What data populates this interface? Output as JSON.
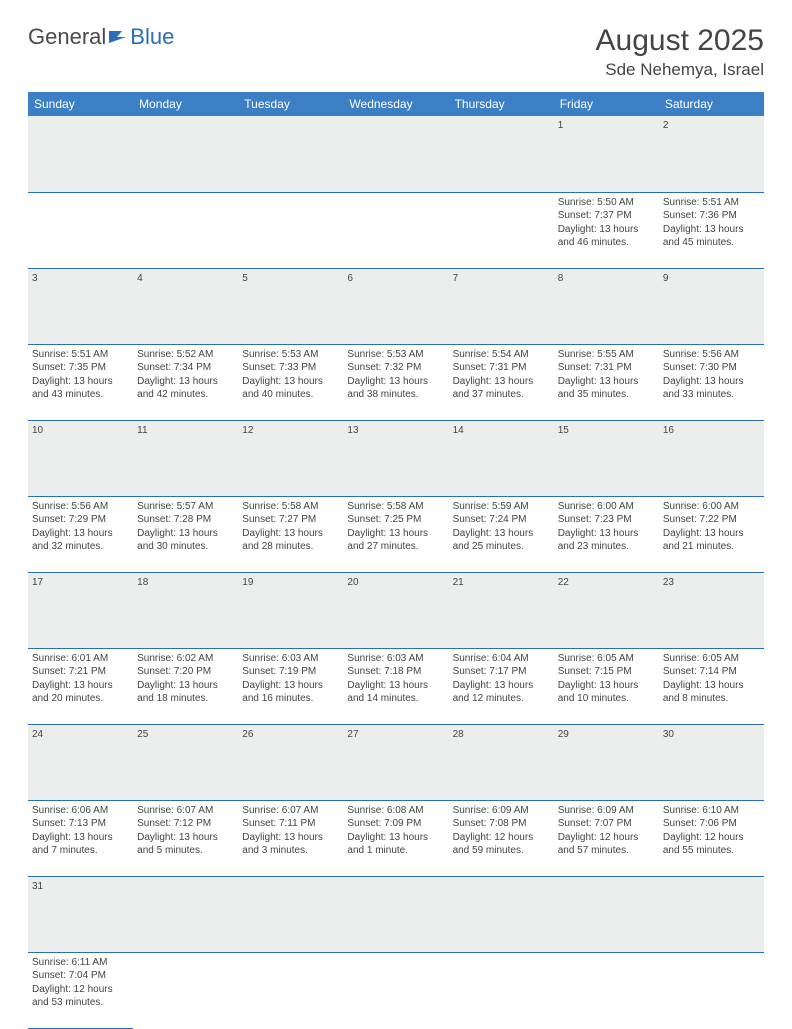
{
  "brand": {
    "word1": "General",
    "word2": "Blue",
    "text_color": "#4a4a4a",
    "accent_color": "#2a6db8"
  },
  "title": {
    "month": "August 2025",
    "location": "Sde Nehemya, Israel"
  },
  "colors": {
    "header_bg": "#3b7fc4",
    "header_fg": "#ffffff",
    "daynum_bg": "#eceded",
    "cell_border": "#2a6db8",
    "text": "#444444"
  },
  "weekdays": [
    "Sunday",
    "Monday",
    "Tuesday",
    "Wednesday",
    "Thursday",
    "Friday",
    "Saturday"
  ],
  "calendar": {
    "first_weekday_index": 5,
    "num_days": 31,
    "days": {
      "1": {
        "sunrise": "5:50 AM",
        "sunset": "7:37 PM",
        "daylight": "13 hours and 46 minutes."
      },
      "2": {
        "sunrise": "5:51 AM",
        "sunset": "7:36 PM",
        "daylight": "13 hours and 45 minutes."
      },
      "3": {
        "sunrise": "5:51 AM",
        "sunset": "7:35 PM",
        "daylight": "13 hours and 43 minutes."
      },
      "4": {
        "sunrise": "5:52 AM",
        "sunset": "7:34 PM",
        "daylight": "13 hours and 42 minutes."
      },
      "5": {
        "sunrise": "5:53 AM",
        "sunset": "7:33 PM",
        "daylight": "13 hours and 40 minutes."
      },
      "6": {
        "sunrise": "5:53 AM",
        "sunset": "7:32 PM",
        "daylight": "13 hours and 38 minutes."
      },
      "7": {
        "sunrise": "5:54 AM",
        "sunset": "7:31 PM",
        "daylight": "13 hours and 37 minutes."
      },
      "8": {
        "sunrise": "5:55 AM",
        "sunset": "7:31 PM",
        "daylight": "13 hours and 35 minutes."
      },
      "9": {
        "sunrise": "5:56 AM",
        "sunset": "7:30 PM",
        "daylight": "13 hours and 33 minutes."
      },
      "10": {
        "sunrise": "5:56 AM",
        "sunset": "7:29 PM",
        "daylight": "13 hours and 32 minutes."
      },
      "11": {
        "sunrise": "5:57 AM",
        "sunset": "7:28 PM",
        "daylight": "13 hours and 30 minutes."
      },
      "12": {
        "sunrise": "5:58 AM",
        "sunset": "7:27 PM",
        "daylight": "13 hours and 28 minutes."
      },
      "13": {
        "sunrise": "5:58 AM",
        "sunset": "7:25 PM",
        "daylight": "13 hours and 27 minutes."
      },
      "14": {
        "sunrise": "5:59 AM",
        "sunset": "7:24 PM",
        "daylight": "13 hours and 25 minutes."
      },
      "15": {
        "sunrise": "6:00 AM",
        "sunset": "7:23 PM",
        "daylight": "13 hours and 23 minutes."
      },
      "16": {
        "sunrise": "6:00 AM",
        "sunset": "7:22 PM",
        "daylight": "13 hours and 21 minutes."
      },
      "17": {
        "sunrise": "6:01 AM",
        "sunset": "7:21 PM",
        "daylight": "13 hours and 20 minutes."
      },
      "18": {
        "sunrise": "6:02 AM",
        "sunset": "7:20 PM",
        "daylight": "13 hours and 18 minutes."
      },
      "19": {
        "sunrise": "6:03 AM",
        "sunset": "7:19 PM",
        "daylight": "13 hours and 16 minutes."
      },
      "20": {
        "sunrise": "6:03 AM",
        "sunset": "7:18 PM",
        "daylight": "13 hours and 14 minutes."
      },
      "21": {
        "sunrise": "6:04 AM",
        "sunset": "7:17 PM",
        "daylight": "13 hours and 12 minutes."
      },
      "22": {
        "sunrise": "6:05 AM",
        "sunset": "7:15 PM",
        "daylight": "13 hours and 10 minutes."
      },
      "23": {
        "sunrise": "6:05 AM",
        "sunset": "7:14 PM",
        "daylight": "13 hours and 8 minutes."
      },
      "24": {
        "sunrise": "6:06 AM",
        "sunset": "7:13 PM",
        "daylight": "13 hours and 7 minutes."
      },
      "25": {
        "sunrise": "6:07 AM",
        "sunset": "7:12 PM",
        "daylight": "13 hours and 5 minutes."
      },
      "26": {
        "sunrise": "6:07 AM",
        "sunset": "7:11 PM",
        "daylight": "13 hours and 3 minutes."
      },
      "27": {
        "sunrise": "6:08 AM",
        "sunset": "7:09 PM",
        "daylight": "13 hours and 1 minute."
      },
      "28": {
        "sunrise": "6:09 AM",
        "sunset": "7:08 PM",
        "daylight": "12 hours and 59 minutes."
      },
      "29": {
        "sunrise": "6:09 AM",
        "sunset": "7:07 PM",
        "daylight": "12 hours and 57 minutes."
      },
      "30": {
        "sunrise": "6:10 AM",
        "sunset": "7:06 PM",
        "daylight": "12 hours and 55 minutes."
      },
      "31": {
        "sunrise": "6:11 AM",
        "sunset": "7:04 PM",
        "daylight": "12 hours and 53 minutes."
      }
    }
  },
  "labels": {
    "sunrise": "Sunrise:",
    "sunset": "Sunset:",
    "daylight": "Daylight:"
  }
}
